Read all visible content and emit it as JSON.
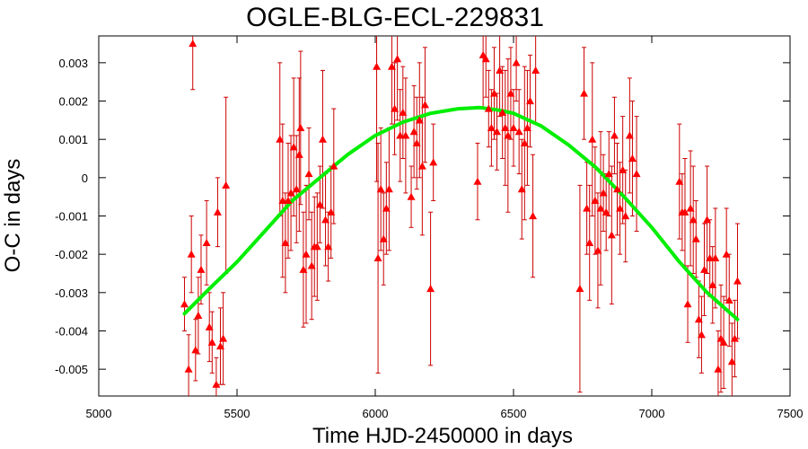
{
  "chart_data": {
    "type": "scatter",
    "title": "OGLE-BLG-ECL-229831",
    "xlabel": "Time HJD-2450000 in days",
    "ylabel": "O-C in days",
    "xlim": [
      5000,
      7500
    ],
    "ylim": [
      -0.0057,
      0.0037
    ],
    "xticks": [
      "5000",
      "5500",
      "6000",
      "6500",
      "7000",
      "7500"
    ],
    "yticks": [
      "-0.005",
      "-0.004",
      "-0.003",
      "-0.002",
      "-0.001",
      "0",
      "0.001",
      "0.002",
      "0.003"
    ],
    "colors": {
      "points": "#ff0000",
      "errorbars": "#cc0000",
      "fit": "#00ee00"
    },
    "grid": false,
    "legend": "none",
    "series": [
      {
        "type": "scatter-errorbars",
        "points": [
          {
            "x": 5310,
            "y": -0.0033,
            "err": 0.0007
          },
          {
            "x": 5325,
            "y": -0.005,
            "err": 0.0009
          },
          {
            "x": 5335,
            "y": -0.002,
            "err": 0.001
          },
          {
            "x": 5340,
            "y": 0.0035,
            "err": 0.0012
          },
          {
            "x": 5350,
            "y": -0.0045,
            "err": 0.0008
          },
          {
            "x": 5360,
            "y": -0.0036,
            "err": 0.001
          },
          {
            "x": 5370,
            "y": -0.0024,
            "err": 0.0009
          },
          {
            "x": 5390,
            "y": -0.0017,
            "err": 0.0011
          },
          {
            "x": 5400,
            "y": -0.0039,
            "err": 0.0009
          },
          {
            "x": 5410,
            "y": -0.0043,
            "err": 0.0008
          },
          {
            "x": 5425,
            "y": -0.0054,
            "err": 0.0007
          },
          {
            "x": 5430,
            "y": -0.0009,
            "err": 0.0009
          },
          {
            "x": 5440,
            "y": -0.0044,
            "err": 0.001
          },
          {
            "x": 5450,
            "y": -0.0042,
            "err": 0.0012
          },
          {
            "x": 5460,
            "y": -0.0002,
            "err": 0.0023
          },
          {
            "x": 5655,
            "y": 0.001,
            "err": 0.002
          },
          {
            "x": 5665,
            "y": -0.0006,
            "err": 0.002
          },
          {
            "x": 5675,
            "y": -0.0017,
            "err": 0.0013
          },
          {
            "x": 5685,
            "y": -0.0006,
            "err": 0.0015
          },
          {
            "x": 5695,
            "y": -0.0004,
            "err": 0.0015
          },
          {
            "x": 5705,
            "y": 0.0008,
            "err": 0.0018
          },
          {
            "x": 5715,
            "y": -0.0003,
            "err": 0.0014
          },
          {
            "x": 5725,
            "y": 0.0006,
            "err": 0.002
          },
          {
            "x": 5730,
            "y": 0.0013,
            "err": 0.002
          },
          {
            "x": 5740,
            "y": -0.0024,
            "err": 0.0015
          },
          {
            "x": 5750,
            "y": -0.002,
            "err": 0.0018
          },
          {
            "x": 5760,
            "y": 0.0001,
            "err": 0.0012
          },
          {
            "x": 5770,
            "y": -0.0023,
            "err": 0.0014
          },
          {
            "x": 5780,
            "y": -0.0018,
            "err": 0.0013
          },
          {
            "x": 5790,
            "y": -0.0018,
            "err": 0.0014
          },
          {
            "x": 5800,
            "y": -0.0007,
            "err": 0.001
          },
          {
            "x": 5810,
            "y": 0.001,
            "err": 0.0018
          },
          {
            "x": 5820,
            "y": -0.0011,
            "err": 0.0012
          },
          {
            "x": 5830,
            "y": -0.0018,
            "err": 0.0009
          },
          {
            "x": 5840,
            "y": -0.0009,
            "err": 0.0012
          },
          {
            "x": 5850,
            "y": 0.0003,
            "err": 0.0015
          },
          {
            "x": 6005,
            "y": 0.0029,
            "err": 0.003
          },
          {
            "x": 6010,
            "y": -0.0021,
            "err": 0.003
          },
          {
            "x": 6020,
            "y": -0.0003,
            "err": 0.0016
          },
          {
            "x": 6030,
            "y": -0.0016,
            "err": 0.0012
          },
          {
            "x": 6040,
            "y": -0.0008,
            "err": 0.0012
          },
          {
            "x": 6050,
            "y": -0.0003,
            "err": 0.0016
          },
          {
            "x": 6060,
            "y": 0.0029,
            "err": 0.0015
          },
          {
            "x": 6070,
            "y": 0.0018,
            "err": 0.0012
          },
          {
            "x": 6080,
            "y": 0.0031,
            "err": 0.0016
          },
          {
            "x": 6090,
            "y": 0.0011,
            "err": 0.0012
          },
          {
            "x": 6100,
            "y": 0.0017,
            "err": 0.0012
          },
          {
            "x": 6110,
            "y": 0.0011,
            "err": 0.0015
          },
          {
            "x": 6130,
            "y": -0.0005,
            "err": 0.0008
          },
          {
            "x": 6140,
            "y": 0.0012,
            "err": 0.0012
          },
          {
            "x": 6150,
            "y": 0.0009,
            "err": 0.0012
          },
          {
            "x": 6160,
            "y": 0.0015,
            "err": 0.0015
          },
          {
            "x": 6170,
            "y": 0.0003,
            "err": 0.0018
          },
          {
            "x": 6180,
            "y": 0.0019,
            "err": 0.0015
          },
          {
            "x": 6200,
            "y": -0.0029,
            "err": 0.002
          },
          {
            "x": 6210,
            "y": 0.0004,
            "err": 0.001
          },
          {
            "x": 6370,
            "y": -0.0001,
            "err": 0.001
          },
          {
            "x": 6390,
            "y": 0.0032,
            "err": 0.0014
          },
          {
            "x": 6400,
            "y": 0.0031,
            "err": 0.001
          },
          {
            "x": 6410,
            "y": 0.0018,
            "err": 0.001
          },
          {
            "x": 6420,
            "y": 0.0013,
            "err": 0.001
          },
          {
            "x": 6430,
            "y": 0.0022,
            "err": 0.0012
          },
          {
            "x": 6440,
            "y": 0.0012,
            "err": 0.001
          },
          {
            "x": 6450,
            "y": 0.0028,
            "err": 0.0012
          },
          {
            "x": 6460,
            "y": 0.0017,
            "err": 0.0012
          },
          {
            "x": 6470,
            "y": 0.0013,
            "err": 0.0015
          },
          {
            "x": 6480,
            "y": 0.0011,
            "err": 0.002
          },
          {
            "x": 6490,
            "y": 0.0022,
            "err": 0.0012
          },
          {
            "x": 6500,
            "y": 0.0013,
            "err": 0.001
          },
          {
            "x": 6510,
            "y": 0.003,
            "err": 0.001
          },
          {
            "x": 6520,
            "y": 0.0012,
            "err": 0.0011
          },
          {
            "x": 6530,
            "y": -0.0003,
            "err": 0.0013
          },
          {
            "x": 6540,
            "y": 0.0009,
            "err": 0.002
          },
          {
            "x": 6550,
            "y": 0.0013,
            "err": 0.0015
          },
          {
            "x": 6560,
            "y": 0.002,
            "err": 0.0012
          },
          {
            "x": 6570,
            "y": -0.001,
            "err": 0.0016
          },
          {
            "x": 6580,
            "y": 0.0028,
            "err": 0.0014
          },
          {
            "x": 6740,
            "y": -0.0029,
            "err": 0.0027
          },
          {
            "x": 6755,
            "y": 0.0022,
            "err": 0.0012
          },
          {
            "x": 6765,
            "y": -0.0008,
            "err": 0.0012
          },
          {
            "x": 6775,
            "y": -0.0017,
            "err": 0.0015
          },
          {
            "x": 6785,
            "y": 0.001,
            "err": 0.002
          },
          {
            "x": 6795,
            "y": -0.0006,
            "err": 0.0014
          },
          {
            "x": 6805,
            "y": -0.0019,
            "err": 0.0015
          },
          {
            "x": 6815,
            "y": -0.0008,
            "err": 0.002
          },
          {
            "x": 6825,
            "y": -0.0004,
            "err": 0.001
          },
          {
            "x": 6835,
            "y": -0.0009,
            "err": 0.001
          },
          {
            "x": 6845,
            "y": 0.0001,
            "err": 0.0011
          },
          {
            "x": 6855,
            "y": -0.0015,
            "err": 0.0018
          },
          {
            "x": 6865,
            "y": 0.0011,
            "err": 0.001
          },
          {
            "x": 6875,
            "y": -0.0003,
            "err": 0.0012
          },
          {
            "x": 6885,
            "y": -0.0008,
            "err": 0.0012
          },
          {
            "x": 6895,
            "y": 0.0002,
            "err": 0.0014
          },
          {
            "x": 6905,
            "y": -0.001,
            "err": 0.0012
          },
          {
            "x": 6920,
            "y": 0.0011,
            "err": 0.0015
          },
          {
            "x": 6930,
            "y": 0.0005,
            "err": 0.0015
          },
          {
            "x": 6945,
            "y": 0.0001,
            "err": 0.0015
          },
          {
            "x": 7100,
            "y": -0.0001,
            "err": 0.0015
          },
          {
            "x": 7110,
            "y": -0.0009,
            "err": 0.001
          },
          {
            "x": 7120,
            "y": -0.0009,
            "err": 0.0014
          },
          {
            "x": 7130,
            "y": -0.0033,
            "err": 0.001
          },
          {
            "x": 7140,
            "y": -0.0008,
            "err": 0.0015
          },
          {
            "x": 7150,
            "y": -0.0011,
            "err": 0.0014
          },
          {
            "x": 7160,
            "y": -0.0016,
            "err": 0.001
          },
          {
            "x": 7170,
            "y": -0.0037,
            "err": 0.001
          },
          {
            "x": 7180,
            "y": -0.0041,
            "err": 0.001
          },
          {
            "x": 7190,
            "y": -0.0024,
            "err": 0.0012
          },
          {
            "x": 7200,
            "y": -0.0011,
            "err": 0.0014
          },
          {
            "x": 7210,
            "y": -0.0021,
            "err": 0.001
          },
          {
            "x": 7220,
            "y": -0.0028,
            "err": 0.001
          },
          {
            "x": 7230,
            "y": -0.0021,
            "err": 0.0013
          },
          {
            "x": 7240,
            "y": -0.005,
            "err": 0.001
          },
          {
            "x": 7250,
            "y": -0.0042,
            "err": 0.0014
          },
          {
            "x": 7260,
            "y": -0.0043,
            "err": 0.0012
          },
          {
            "x": 7270,
            "y": -0.002,
            "err": 0.0012
          },
          {
            "x": 7280,
            "y": -0.0032,
            "err": 0.0012
          },
          {
            "x": 7290,
            "y": -0.0048,
            "err": 0.001
          },
          {
            "x": 7300,
            "y": -0.0042,
            "err": 0.001
          },
          {
            "x": 7310,
            "y": -0.0027,
            "err": 0.0015
          }
        ]
      },
      {
        "type": "line",
        "x": [
          5310,
          5400,
          5500,
          5600,
          5700,
          5800,
          5900,
          6000,
          6100,
          6200,
          6300,
          6380,
          6450,
          6500,
          6600,
          6700,
          6800,
          6900,
          7000,
          7100,
          7200,
          7310
        ],
        "y": [
          -0.00355,
          -0.0029,
          -0.0022,
          -0.0014,
          -0.0006,
          0.0,
          0.0006,
          0.0011,
          0.00145,
          0.00168,
          0.0018,
          0.00183,
          0.00176,
          0.00168,
          0.00135,
          0.00085,
          0.00025,
          -0.0005,
          -0.0013,
          -0.0022,
          -0.003,
          -0.0037
        ]
      }
    ]
  }
}
